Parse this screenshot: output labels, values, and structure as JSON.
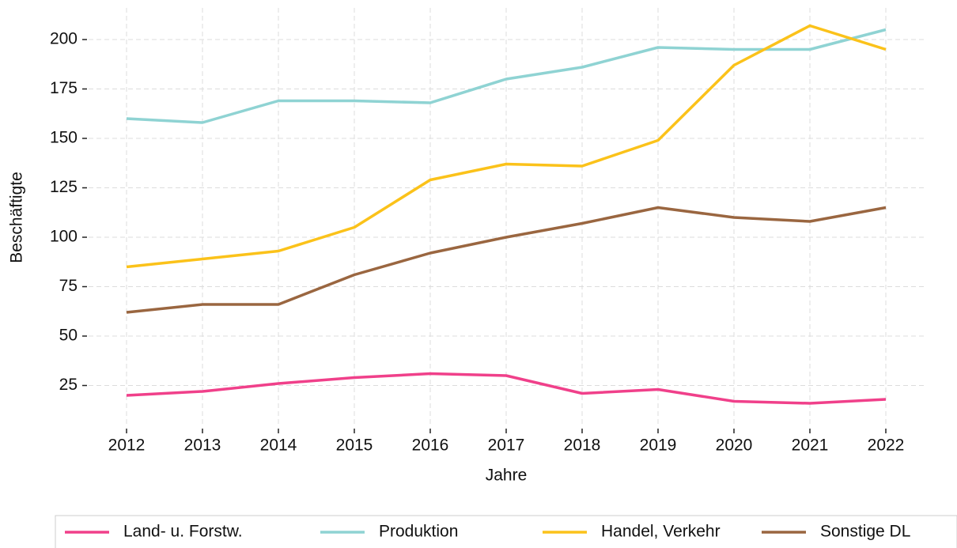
{
  "chart_data": {
    "type": "line",
    "x": [
      2012,
      2013,
      2014,
      2015,
      2016,
      2017,
      2018,
      2019,
      2020,
      2021,
      2022
    ],
    "series": [
      {
        "name": "Land- u. Forstw.",
        "color": "#f0408a",
        "values": [
          20,
          22,
          26,
          29,
          31,
          30,
          21,
          23,
          17,
          16,
          18
        ]
      },
      {
        "name": "Produktion",
        "color": "#8fd3d3",
        "values": [
          160,
          158,
          169,
          169,
          168,
          180,
          186,
          196,
          195,
          195,
          205
        ]
      },
      {
        "name": "Handel, Verkehr",
        "color": "#fbc21a",
        "values": [
          85,
          89,
          93,
          105,
          129,
          137,
          136,
          149,
          187,
          207,
          195
        ]
      },
      {
        "name": "Sonstige DL",
        "color": "#9a6640",
        "values": [
          62,
          66,
          66,
          81,
          92,
          100,
          107,
          115,
          110,
          108,
          115
        ]
      }
    ],
    "xlabel": "Jahre",
    "ylabel": "Beschäftigte",
    "xlim": [
      2011.5,
      2022.5
    ],
    "xticks": [
      2012,
      2013,
      2014,
      2015,
      2016,
      2017,
      2018,
      2019,
      2020,
      2021,
      2022
    ],
    "ylim": [
      4,
      216
    ],
    "yticks": [
      25,
      50,
      75,
      100,
      125,
      150,
      175,
      200
    ],
    "grid": true,
    "legend": "bottom"
  }
}
